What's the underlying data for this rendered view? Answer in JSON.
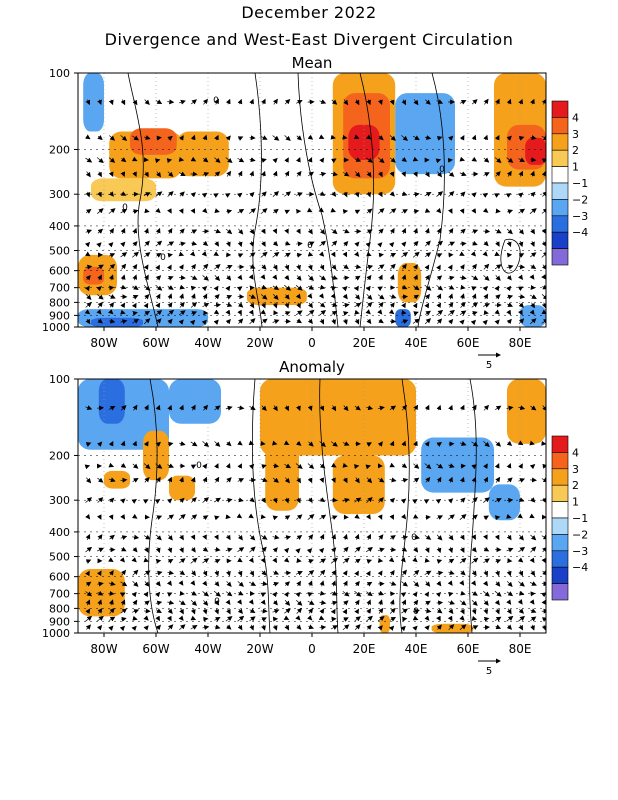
{
  "title": "December 2022",
  "subtitle": "Divergence and West-East Divergent Circulation",
  "chart_data": [
    {
      "type": "heatmap",
      "title": "Mean",
      "xlim": [
        -90,
        90
      ],
      "x_ticks": [
        -80,
        -60,
        -40,
        -20,
        0,
        20,
        40,
        60,
        80
      ],
      "x_tick_labels": [
        "80W",
        "60W",
        "40W",
        "20W",
        "0",
        "20E",
        "40E",
        "60E",
        "80E"
      ],
      "y_scale": "log",
      "ylim": [
        1000,
        100
      ],
      "y_ticks": [
        100,
        200,
        300,
        400,
        500,
        600,
        700,
        800,
        900,
        1000
      ],
      "y_tick_labels": [
        "100",
        "200",
        "300",
        "400",
        "500",
        "600",
        "700",
        "800",
        "900",
        "1000"
      ],
      "contour_labels": [
        "0",
        "0",
        "0",
        "0",
        "0"
      ],
      "legend": {
        "position": "right",
        "levels": [
          "4",
          "3",
          "2",
          "1",
          "−1",
          "−2",
          "−3",
          "−4"
        ],
        "colors": [
          "#e41a1c",
          "#f4641c",
          "#f5a11c",
          "#f9c955",
          "#ffffff",
          "#add8f7",
          "#5aa6f0",
          "#2a6ee0",
          "#1a3fc8",
          "#8469d8"
        ]
      },
      "vector_reference": "5",
      "regions": [
        {
          "x": [
            -78,
            -50
          ],
          "p": [
            170,
            260
          ],
          "value": 2
        },
        {
          "x": [
            -70,
            -52
          ],
          "p": [
            165,
            210
          ],
          "value": 3
        },
        {
          "x": [
            -52,
            -32
          ],
          "p": [
            170,
            255
          ],
          "value": 2
        },
        {
          "x": [
            -88,
            -80
          ],
          "p": [
            100,
            170
          ],
          "value": -2
        },
        {
          "x": [
            -85,
            -60
          ],
          "p": [
            260,
            320
          ],
          "value": 1
        },
        {
          "x": [
            -90,
            -75
          ],
          "p": [
            520,
            750
          ],
          "value": 2
        },
        {
          "x": [
            -88,
            -80
          ],
          "p": [
            580,
            680
          ],
          "value": 3
        },
        {
          "x": [
            -90,
            -40
          ],
          "p": [
            850,
            1000
          ],
          "value": -2
        },
        {
          "x": [
            -85,
            -65
          ],
          "p": [
            920,
            1000
          ],
          "value": -3
        },
        {
          "x": [
            -25,
            -2
          ],
          "p": [
            700,
            820
          ],
          "value": 2
        },
        {
          "x": [
            8,
            32
          ],
          "p": [
            100,
            300
          ],
          "value": 2
        },
        {
          "x": [
            12,
            30
          ],
          "p": [
            120,
            260
          ],
          "value": 3
        },
        {
          "x": [
            14,
            26
          ],
          "p": [
            160,
            220
          ],
          "value": 4
        },
        {
          "x": [
            32,
            55
          ],
          "p": [
            120,
            250
          ],
          "value": -2
        },
        {
          "x": [
            33,
            42
          ],
          "p": [
            560,
            800
          ],
          "value": 2
        },
        {
          "x": [
            32,
            38
          ],
          "p": [
            850,
            1000
          ],
          "value": -3
        },
        {
          "x": [
            70,
            90
          ],
          "p": [
            100,
            280
          ],
          "value": 2
        },
        {
          "x": [
            75,
            90
          ],
          "p": [
            160,
            240
          ],
          "value": 3
        },
        {
          "x": [
            82,
            90
          ],
          "p": [
            180,
            230
          ],
          "value": 4
        },
        {
          "x": [
            80,
            90
          ],
          "p": [
            820,
            1000
          ],
          "value": -2
        }
      ]
    },
    {
      "type": "heatmap",
      "title": "Anomaly",
      "xlim": [
        -90,
        90
      ],
      "x_ticks": [
        -80,
        -60,
        -40,
        -20,
        0,
        20,
        40,
        60,
        80
      ],
      "x_tick_labels": [
        "80W",
        "60W",
        "40W",
        "20W",
        "0",
        "20E",
        "40E",
        "60E",
        "80E"
      ],
      "y_scale": "log",
      "ylim": [
        1000,
        100
      ],
      "y_ticks": [
        100,
        200,
        300,
        400,
        500,
        600,
        700,
        800,
        900,
        1000
      ],
      "y_tick_labels": [
        "100",
        "200",
        "300",
        "400",
        "500",
        "600",
        "700",
        "800",
        "900",
        "1000"
      ],
      "contour_labels": [
        "0",
        "0",
        "0",
        "0"
      ],
      "legend": {
        "position": "right",
        "levels": [
          "4",
          "3",
          "2",
          "1",
          "−1",
          "−2",
          "−3",
          "−4"
        ],
        "colors": [
          "#e41a1c",
          "#f4641c",
          "#f5a11c",
          "#f9c955",
          "#ffffff",
          "#add8f7",
          "#5aa6f0",
          "#2a6ee0",
          "#1a3fc8",
          "#8469d8"
        ]
      },
      "vector_reference": "5",
      "regions": [
        {
          "x": [
            -90,
            -55
          ],
          "p": [
            100,
            190
          ],
          "value": -2
        },
        {
          "x": [
            -82,
            -72
          ],
          "p": [
            100,
            150
          ],
          "value": -3
        },
        {
          "x": [
            -55,
            -35
          ],
          "p": [
            100,
            150
          ],
          "value": -2
        },
        {
          "x": [
            -65,
            -55
          ],
          "p": [
            160,
            250
          ],
          "value": 2
        },
        {
          "x": [
            -80,
            -70
          ],
          "p": [
            230,
            270
          ],
          "value": 2
        },
        {
          "x": [
            -55,
            -45
          ],
          "p": [
            240,
            300
          ],
          "value": 2
        },
        {
          "x": [
            -90,
            -72
          ],
          "p": [
            560,
            860
          ],
          "value": 2
        },
        {
          "x": [
            -20,
            40
          ],
          "p": [
            100,
            200
          ],
          "value": 2
        },
        {
          "x": [
            -18,
            -5
          ],
          "p": [
            150,
            330
          ],
          "value": 2
        },
        {
          "x": [
            8,
            28
          ],
          "p": [
            200,
            340
          ],
          "value": 2
        },
        {
          "x": [
            42,
            70
          ],
          "p": [
            170,
            280
          ],
          "value": -2
        },
        {
          "x": [
            68,
            80
          ],
          "p": [
            260,
            360
          ],
          "value": -2
        },
        {
          "x": [
            75,
            90
          ],
          "p": [
            100,
            180
          ],
          "value": 2
        },
        {
          "x": [
            26,
            30
          ],
          "p": [
            850,
            1000
          ],
          "value": 2
        },
        {
          "x": [
            46,
            62
          ],
          "p": [
            920,
            1000
          ],
          "value": 2
        }
      ]
    }
  ]
}
